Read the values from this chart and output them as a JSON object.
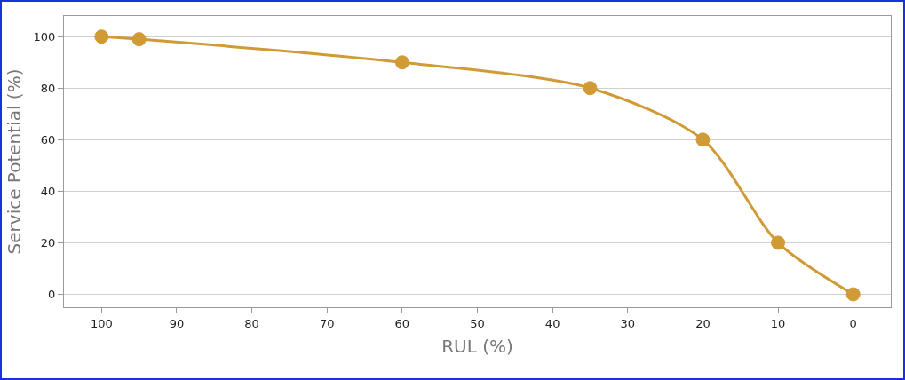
{
  "chart_data": {
    "type": "line",
    "xlabel": "RUL (%)",
    "ylabel": "Service Potential (%)",
    "x": [
      100,
      95,
      60,
      35,
      20,
      10,
      0
    ],
    "series": [
      {
        "color": "#d09a35",
        "values": [
          100,
          99,
          90,
          80,
          60,
          20,
          0
        ]
      }
    ],
    "xlim": [
      105,
      -5
    ],
    "xticks": [
      100,
      90,
      80,
      70,
      60,
      50,
      40,
      30,
      20,
      10,
      0
    ],
    "ylim": [
      -5,
      108
    ],
    "yticks": [
      0,
      20,
      40,
      60,
      80,
      100
    ],
    "grid": "y",
    "marker": "circle",
    "line_style": "solid",
    "legend": false
  }
}
